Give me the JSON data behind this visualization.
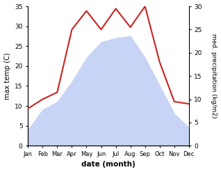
{
  "months": [
    "Jan",
    "Feb",
    "Mar",
    "Apr",
    "May",
    "Jun",
    "Jul",
    "Aug",
    "Sep",
    "Oct",
    "Nov",
    "Dec"
  ],
  "temperature": [
    4.0,
    9.0,
    11.0,
    16.0,
    22.0,
    26.0,
    27.0,
    27.5,
    22.0,
    15.0,
    8.0,
    4.5
  ],
  "precipitation": [
    8.0,
    10.0,
    11.5,
    25.0,
    29.0,
    25.0,
    29.5,
    25.5,
    30.0,
    18.0,
    9.5,
    9.0
  ],
  "temp_ylim": [
    0,
    35
  ],
  "precip_ylim": [
    0,
    30
  ],
  "temp_yticks": [
    0,
    5,
    10,
    15,
    20,
    25,
    30,
    35
  ],
  "precip_yticks": [
    0,
    5,
    10,
    15,
    20,
    25,
    30
  ],
  "xlabel": "date (month)",
  "ylabel_left": "max temp (C)",
  "ylabel_right": "med. precipitation (kg/m2)",
  "fill_color": "#c8d4f5",
  "line_color": "#cc2222",
  "background_color": "#ffffff",
  "figsize": [
    3.18,
    2.47
  ],
  "dpi": 100
}
